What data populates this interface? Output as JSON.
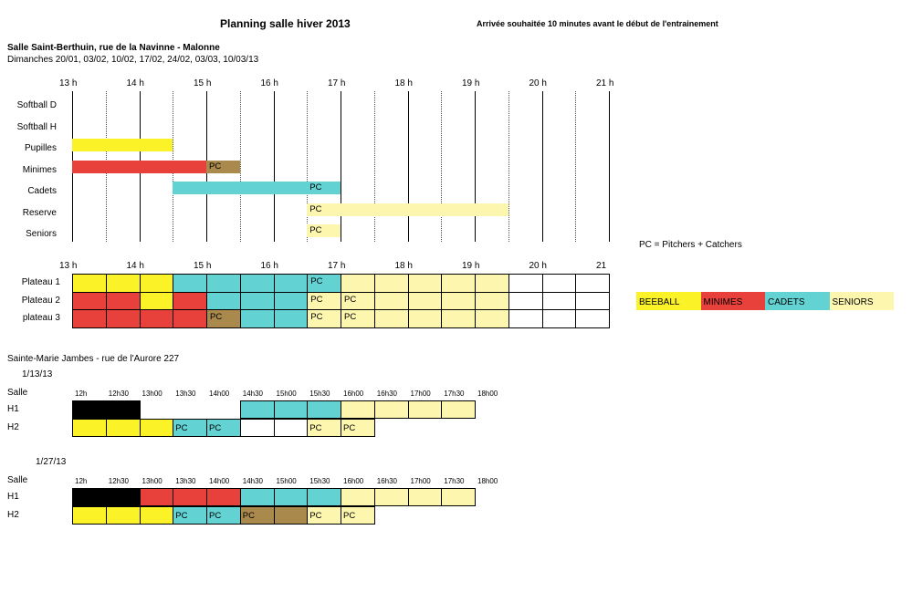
{
  "header": {
    "title": "Planning salle hiver 2013",
    "note": "Arrivée souhaitée 10 minutes avant le début de l'entrainement"
  },
  "colors": {
    "yellow": "#fcf228",
    "red": "#e8403a",
    "brown": "#a98a4c",
    "cyan": "#62d2d3",
    "cream": "#fdf6ae",
    "black": "#000000"
  },
  "section1": {
    "location": "Salle Saint-Berthuin, rue de la Navinne - Malonne",
    "dates": "Dimanches 20/01, 03/02, 10/02, 17/02, 24/02, 03/03, 10/03/13",
    "hours": [
      "13 h",
      "14 h",
      "15 h",
      "16 h",
      "17 h",
      "18 h",
      "19 h",
      "20 h",
      "21 h"
    ],
    "rows": [
      {
        "label": "Softball D",
        "bars": []
      },
      {
        "label": "Softball H",
        "bars": []
      },
      {
        "label": "Pupilles",
        "bars": [
          {
            "start": 13,
            "end": 14.5,
            "color": "yellow",
            "text": ""
          }
        ]
      },
      {
        "label": "Minimes",
        "bars": [
          {
            "start": 13,
            "end": 15,
            "color": "red",
            "text": ""
          },
          {
            "start": 15,
            "end": 15.5,
            "color": "brown",
            "text": "PC"
          }
        ]
      },
      {
        "label": "Cadets",
        "bars": [
          {
            "start": 14.5,
            "end": 16.5,
            "color": "cyan",
            "text": ""
          },
          {
            "start": 16.5,
            "end": 17,
            "color": "cyan",
            "text": "PC"
          }
        ]
      },
      {
        "label": "Reserve",
        "bars": [
          {
            "start": 16.5,
            "end": 19.5,
            "color": "cream",
            "text": "PC"
          }
        ]
      },
      {
        "label": "Seniors",
        "bars": [
          {
            "start": 16.5,
            "end": 17,
            "color": "cream",
            "text": "PC"
          }
        ]
      }
    ],
    "pc_note": "PC = Pitchers + Catchers"
  },
  "plateau": {
    "hours": [
      "13 h",
      "14 h",
      "15 h",
      "16 h",
      "17 h",
      "18 h",
      "19 h",
      "20 h",
      "21"
    ],
    "rows": [
      {
        "label": "Plateau 1",
        "cells": [
          {
            "c": "yellow",
            "t": ""
          },
          {
            "c": "yellow",
            "t": ""
          },
          {
            "c": "yellow",
            "t": ""
          },
          {
            "c": "cyan",
            "t": ""
          },
          {
            "c": "cyan",
            "t": ""
          },
          {
            "c": "cyan",
            "t": ""
          },
          {
            "c": "cyan",
            "t": ""
          },
          {
            "c": "cyan",
            "t": "PC"
          },
          {
            "c": "cream",
            "t": ""
          },
          {
            "c": "cream",
            "t": ""
          },
          {
            "c": "cream",
            "t": ""
          },
          {
            "c": "cream",
            "t": ""
          },
          {
            "c": "cream",
            "t": ""
          },
          {
            "c": "white",
            "t": ""
          },
          {
            "c": "white",
            "t": ""
          },
          {
            "c": "white",
            "t": ""
          }
        ]
      },
      {
        "label": "Plateau 2",
        "cells": [
          {
            "c": "red",
            "t": ""
          },
          {
            "c": "red",
            "t": ""
          },
          {
            "c": "yellow",
            "t": ""
          },
          {
            "c": "red",
            "t": ""
          },
          {
            "c": "cyan",
            "t": ""
          },
          {
            "c": "cyan",
            "t": ""
          },
          {
            "c": "cyan",
            "t": ""
          },
          {
            "c": "cream",
            "t": "PC"
          },
          {
            "c": "cream",
            "t": "PC"
          },
          {
            "c": "cream",
            "t": ""
          },
          {
            "c": "cream",
            "t": ""
          },
          {
            "c": "cream",
            "t": ""
          },
          {
            "c": "cream",
            "t": ""
          },
          {
            "c": "white",
            "t": ""
          },
          {
            "c": "white",
            "t": ""
          },
          {
            "c": "white",
            "t": ""
          }
        ]
      },
      {
        "label": "plateau 3",
        "cells": [
          {
            "c": "red",
            "t": ""
          },
          {
            "c": "red",
            "t": ""
          },
          {
            "c": "red",
            "t": ""
          },
          {
            "c": "red",
            "t": ""
          },
          {
            "c": "brown",
            "t": "PC"
          },
          {
            "c": "cyan",
            "t": ""
          },
          {
            "c": "cyan",
            "t": ""
          },
          {
            "c": "cream",
            "t": "PC"
          },
          {
            "c": "cream",
            "t": "PC"
          },
          {
            "c": "cream",
            "t": ""
          },
          {
            "c": "cream",
            "t": ""
          },
          {
            "c": "cream",
            "t": ""
          },
          {
            "c": "cream",
            "t": ""
          },
          {
            "c": "white",
            "t": ""
          },
          {
            "c": "white",
            "t": ""
          },
          {
            "c": "white",
            "t": ""
          }
        ]
      }
    ]
  },
  "legend": [
    {
      "label": "BEEBALL",
      "color": "yellow"
    },
    {
      "label": "MINIMES",
      "color": "red"
    },
    {
      "label": "CADETS",
      "color": "cyan"
    },
    {
      "label": "SENIORS",
      "color": "cream"
    }
  ],
  "section2": {
    "location": "Sainte-Marie Jambes - rue de l'Aurore 227",
    "blocks": [
      {
        "date": "1/13/13",
        "salle": "Salle",
        "times": [
          "12h",
          "12h30",
          "13h00",
          "13h30",
          "14h00",
          "14h30",
          "15h00",
          "15h30",
          "16h00",
          "16h30",
          "17h00",
          "17h30",
          "18h00"
        ],
        "rows": [
          {
            "label": "H1",
            "cells": [
              {
                "c": "black",
                "t": ""
              },
              {
                "c": "black",
                "t": ""
              },
              null,
              null,
              null,
              {
                "c": "cyan",
                "t": ""
              },
              {
                "c": "cyan",
                "t": ""
              },
              {
                "c": "cyan",
                "t": ""
              },
              {
                "c": "cream",
                "t": ""
              },
              {
                "c": "cream",
                "t": ""
              },
              {
                "c": "cream",
                "t": ""
              },
              {
                "c": "cream",
                "t": ""
              }
            ]
          },
          {
            "label": "H2",
            "cells": [
              {
                "c": "yellow",
                "t": ""
              },
              {
                "c": "yellow",
                "t": ""
              },
              {
                "c": "yellow",
                "t": ""
              },
              {
                "c": "cyan",
                "t": "PC"
              },
              {
                "c": "cyan",
                "t": "PC"
              },
              {
                "c": "white",
                "t": ""
              },
              {
                "c": "white",
                "t": ""
              },
              {
                "c": "cream",
                "t": "PC"
              },
              {
                "c": "cream",
                "t": "PC"
              }
            ]
          }
        ]
      },
      {
        "date": "1/27/13",
        "salle": "Salle",
        "times": [
          "12h",
          "12h30",
          "13h00",
          "13h30",
          "14h00",
          "14h30",
          "15h00",
          "15h30",
          "16h00",
          "16h30",
          "17h00",
          "17h30",
          "18h00"
        ],
        "rows": [
          {
            "label": "H1",
            "cells": [
              {
                "c": "black",
                "t": ""
              },
              {
                "c": "black",
                "t": ""
              },
              {
                "c": "red",
                "t": ""
              },
              {
                "c": "red",
                "t": ""
              },
              {
                "c": "red",
                "t": ""
              },
              {
                "c": "cyan",
                "t": ""
              },
              {
                "c": "cyan",
                "t": ""
              },
              {
                "c": "cyan",
                "t": ""
              },
              {
                "c": "cream",
                "t": ""
              },
              {
                "c": "cream",
                "t": ""
              },
              {
                "c": "cream",
                "t": ""
              },
              {
                "c": "cream",
                "t": ""
              }
            ]
          },
          {
            "label": "H2",
            "cells": [
              {
                "c": "yellow",
                "t": ""
              },
              {
                "c": "yellow",
                "t": ""
              },
              {
                "c": "yellow",
                "t": ""
              },
              {
                "c": "cyan",
                "t": "PC"
              },
              {
                "c": "cyan",
                "t": "PC"
              },
              {
                "c": "brown",
                "t": "PC"
              },
              {
                "c": "brown",
                "t": ""
              },
              {
                "c": "cream",
                "t": "PC"
              },
              {
                "c": "cream",
                "t": "PC"
              }
            ]
          }
        ]
      }
    ]
  }
}
